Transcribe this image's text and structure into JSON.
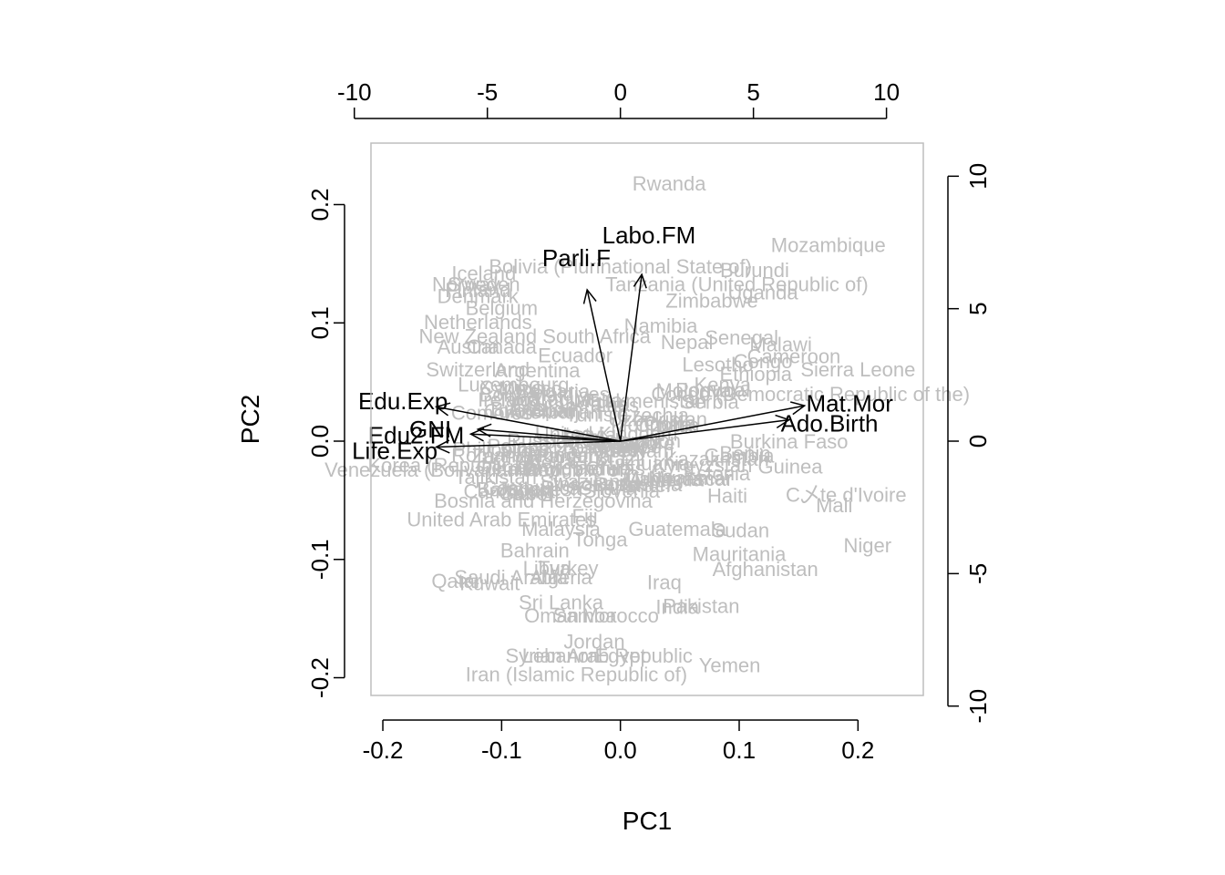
{
  "chart_data": {
    "type": "scatter",
    "subtype": "biplot",
    "xlabel": "PC1",
    "ylabel": "PC2",
    "xlim": [
      -0.21,
      0.255
    ],
    "ylim": [
      -0.215,
      0.252
    ],
    "x_ticks": [
      -0.2,
      -0.1,
      0.0,
      0.1,
      0.2
    ],
    "y_ticks": [
      -0.2,
      -0.1,
      0.0,
      0.1,
      0.2
    ],
    "x_tick_labels": [
      "-0.2",
      "-0.1",
      "0.0",
      "0.1",
      "0.2"
    ],
    "y_tick_labels": [
      "-0.2",
      "-0.1",
      "0.0",
      "0.1",
      "0.2"
    ],
    "top_ticks": [
      -10,
      -5,
      0,
      5,
      10
    ],
    "top_tick_labels": [
      "-10",
      "-5",
      "0",
      "5",
      "10"
    ],
    "right_ticks": [
      -10,
      -5,
      0,
      5,
      10
    ],
    "right_tick_labels": [
      "-10",
      "-5",
      "0",
      "5",
      "10"
    ],
    "secondary_scale_per_unit": 0.0224,
    "observation_color": "#bebebe",
    "arrow_color": "#000000",
    "observations": [
      {
        "label": "Rwanda",
        "x": 0.041,
        "y": 0.218
      },
      {
        "label": "Mozambique",
        "x": 0.175,
        "y": 0.166
      },
      {
        "label": "Bolivia (Plurinational State of)",
        "x": 0.0,
        "y": 0.148
      },
      {
        "label": "Burundi",
        "x": 0.113,
        "y": 0.145
      },
      {
        "label": "Iceland",
        "x": -0.115,
        "y": 0.142
      },
      {
        "label": "Tanzania (United Republic of)",
        "x": 0.098,
        "y": 0.133
      },
      {
        "label": "Norway",
        "x": -0.13,
        "y": 0.133
      },
      {
        "label": "Sweden",
        "x": -0.115,
        "y": 0.133
      },
      {
        "label": "Finland",
        "x": -0.12,
        "y": 0.128
      },
      {
        "label": "Denmark",
        "x": -0.12,
        "y": 0.123
      },
      {
        "label": "Uganda",
        "x": 0.12,
        "y": 0.126
      },
      {
        "label": "Zimbabwe",
        "x": 0.077,
        "y": 0.119
      },
      {
        "label": "Belgium",
        "x": -0.1,
        "y": 0.113
      },
      {
        "label": "Netherlands",
        "x": -0.12,
        "y": 0.101
      },
      {
        "label": "Namibia",
        "x": 0.034,
        "y": 0.098
      },
      {
        "label": "New Zealand",
        "x": -0.12,
        "y": 0.089
      },
      {
        "label": "South Africa",
        "x": -0.02,
        "y": 0.089
      },
      {
        "label": "Senegal",
        "x": 0.102,
        "y": 0.088
      },
      {
        "label": "Nepal",
        "x": 0.056,
        "y": 0.084
      },
      {
        "label": "Malawi",
        "x": 0.135,
        "y": 0.082
      },
      {
        "label": "Austria",
        "x": -0.128,
        "y": 0.08
      },
      {
        "label": "Canada",
        "x": -0.1,
        "y": 0.08
      },
      {
        "label": "Ecuador",
        "x": -0.038,
        "y": 0.073
      },
      {
        "label": "Cameroon",
        "x": 0.146,
        "y": 0.072
      },
      {
        "label": "Lesotho",
        "x": 0.082,
        "y": 0.065
      },
      {
        "label": "Congo",
        "x": 0.12,
        "y": 0.068
      },
      {
        "label": "Sierra Leone",
        "x": 0.2,
        "y": 0.061
      },
      {
        "label": "Switzerland",
        "x": -0.12,
        "y": 0.061
      },
      {
        "label": "Argentina",
        "x": -0.07,
        "y": 0.06
      },
      {
        "label": "Ethiopia",
        "x": 0.114,
        "y": 0.057
      },
      {
        "label": "Kenya",
        "x": 0.086,
        "y": 0.048
      },
      {
        "label": "Luxembourg",
        "x": -0.09,
        "y": 0.048
      },
      {
        "label": "Congo (Democratic Republic of the)",
        "x": 0.16,
        "y": 0.04
      },
      {
        "label": "Mat.Mor",
        "x": 0.12,
        "y": 0.035
      },
      {
        "label": "Burkina Faso",
        "x": 0.142,
        "y": 0.0
      },
      {
        "label": "Benin",
        "x": 0.105,
        "y": -0.01
      },
      {
        "label": "Korea (Republic of)",
        "x": -0.14,
        "y": -0.02
      },
      {
        "label": "Venezuela (Bolivarian Republic of)",
        "x": -0.12,
        "y": -0.024
      },
      {
        "label": "Guinea",
        "x": 0.143,
        "y": -0.021
      },
      {
        "label": "Gambia",
        "x": 0.1,
        "y": -0.012
      },
      {
        "label": "Japan",
        "x": -0.08,
        "y": -0.04
      },
      {
        "label": "Haiti",
        "x": 0.09,
        "y": -0.046
      },
      {
        "label": "C乄te d'Ivoire",
        "x": 0.19,
        "y": -0.045
      },
      {
        "label": "Mali",
        "x": 0.18,
        "y": -0.054
      },
      {
        "label": "Bosnia and Herzegovina",
        "x": -0.065,
        "y": -0.05
      },
      {
        "label": "United Arab Emirates",
        "x": -0.1,
        "y": -0.066
      },
      {
        "label": "Fiji",
        "x": -0.03,
        "y": -0.063
      },
      {
        "label": "Guatemala",
        "x": 0.048,
        "y": -0.074
      },
      {
        "label": "Sudan",
        "x": 0.101,
        "y": -0.075
      },
      {
        "label": "Malaysia",
        "x": -0.05,
        "y": -0.074
      },
      {
        "label": "Tonga",
        "x": -0.017,
        "y": -0.083
      },
      {
        "label": "Niger",
        "x": 0.208,
        "y": -0.088
      },
      {
        "label": "Bahrain",
        "x": -0.072,
        "y": -0.092
      },
      {
        "label": "Mauritania",
        "x": 0.1,
        "y": -0.095
      },
      {
        "label": "Libya",
        "x": -0.062,
        "y": -0.107
      },
      {
        "label": "Turkey",
        "x": -0.044,
        "y": -0.107
      },
      {
        "label": "Afghanistan",
        "x": 0.122,
        "y": -0.108
      },
      {
        "label": "Qatar",
        "x": -0.138,
        "y": -0.118
      },
      {
        "label": "Saudi Arabia",
        "x": -0.092,
        "y": -0.115
      },
      {
        "label": "Kuwait",
        "x": -0.11,
        "y": -0.12
      },
      {
        "label": "Algeria",
        "x": -0.05,
        "y": -0.115
      },
      {
        "label": "Iraq",
        "x": 0.037,
        "y": -0.119
      },
      {
        "label": "Sri Lanka",
        "x": -0.05,
        "y": -0.136
      },
      {
        "label": "Pakistan",
        "x": 0.068,
        "y": -0.139
      },
      {
        "label": "India",
        "x": 0.048,
        "y": -0.14
      },
      {
        "label": "Oman",
        "x": -0.058,
        "y": -0.147
      },
      {
        "label": "Samoa",
        "x": -0.03,
        "y": -0.147
      },
      {
        "label": "Morocco",
        "x": 0.0,
        "y": -0.147
      },
      {
        "label": "Jordan",
        "x": -0.022,
        "y": -0.169
      },
      {
        "label": "Lebanon",
        "x": -0.05,
        "y": -0.181
      },
      {
        "label": "Syrian Arab Republic",
        "x": -0.018,
        "y": -0.181
      },
      {
        "label": "Egypt",
        "x": 0.0,
        "y": -0.181
      },
      {
        "label": "Yemen",
        "x": 0.092,
        "y": -0.189
      },
      {
        "label": "Iran (Islamic Republic of)",
        "x": -0.037,
        "y": -0.197
      }
    ],
    "dense_cluster_labels": [
      "United Kingdom",
      "Germany",
      "France",
      "Ireland",
      "Italy",
      "Spain",
      "Israel",
      "Chile",
      "Cuba",
      "Uruguay",
      "Costa Rica",
      "Portugal",
      "Poland",
      "Estonia",
      "Latvia",
      "Lithuania",
      "Mexico",
      "Peru",
      "Brazil",
      "Colombia",
      "Panama",
      "Bolivia",
      "Nicaragua",
      "Honduras",
      "Viet Nam",
      "China",
      "Thailand",
      "Indonesia",
      "Philippines",
      "Mongolia",
      "Kazakhstan",
      "Russian Federation",
      "Ukraine",
      "Belarus",
      "Georgia",
      "Armenia",
      "Azerbaijan",
      "Moldova",
      "Serbia",
      "Croatia",
      "Slovenia",
      "Hungary",
      "Slovakia",
      "Czechia",
      "Bulgaria",
      "Romania",
      "Greece",
      "Cyprus",
      "Malta",
      "Singapore",
      "Brunei",
      "Kyrgyzstan",
      "Tajikistan",
      "Uzbekistan",
      "Turkmenistan",
      "Bhutan",
      "Bangladesh",
      "Cambodia",
      "Laos",
      "Myanmar",
      "Ghana",
      "Togo",
      "Zambia",
      "Liberia",
      "Madagascar",
      "Gabon",
      "Botswana",
      "Swaziland",
      "Djibouti",
      "Comoros",
      "Tunisia",
      "Maldives"
    ],
    "loadings": [
      {
        "name": "Labo.FM",
        "x": 0.018,
        "y": 0.141,
        "label_x": 0.024,
        "label_y": 0.174,
        "anchor": "middle"
      },
      {
        "name": "Parli.F",
        "x": -0.028,
        "y": 0.128,
        "label_x": -0.037,
        "label_y": 0.155,
        "anchor": "middle"
      },
      {
        "name": "Mat.Mor",
        "x": 0.155,
        "y": 0.03,
        "label_x": 0.193,
        "label_y": 0.032,
        "anchor": "middle"
      },
      {
        "name": "Ado.Birth",
        "x": 0.142,
        "y": 0.018,
        "label_x": 0.176,
        "label_y": 0.015,
        "anchor": "middle"
      },
      {
        "name": "Edu.Exp",
        "x": -0.155,
        "y": 0.029,
        "label_x": -0.183,
        "label_y": 0.034,
        "anchor": "middle"
      },
      {
        "name": "GNI",
        "x": -0.12,
        "y": 0.01,
        "label_x": -0.16,
        "label_y": 0.01,
        "anchor": "middle"
      },
      {
        "name": "Edu2.FM",
        "x": -0.126,
        "y": 0.006,
        "label_x": -0.172,
        "label_y": 0.005,
        "anchor": "middle"
      },
      {
        "name": "Life.Exp",
        "x": -0.155,
        "y": -0.005,
        "label_x": -0.19,
        "label_y": -0.008,
        "anchor": "middle"
      }
    ]
  }
}
